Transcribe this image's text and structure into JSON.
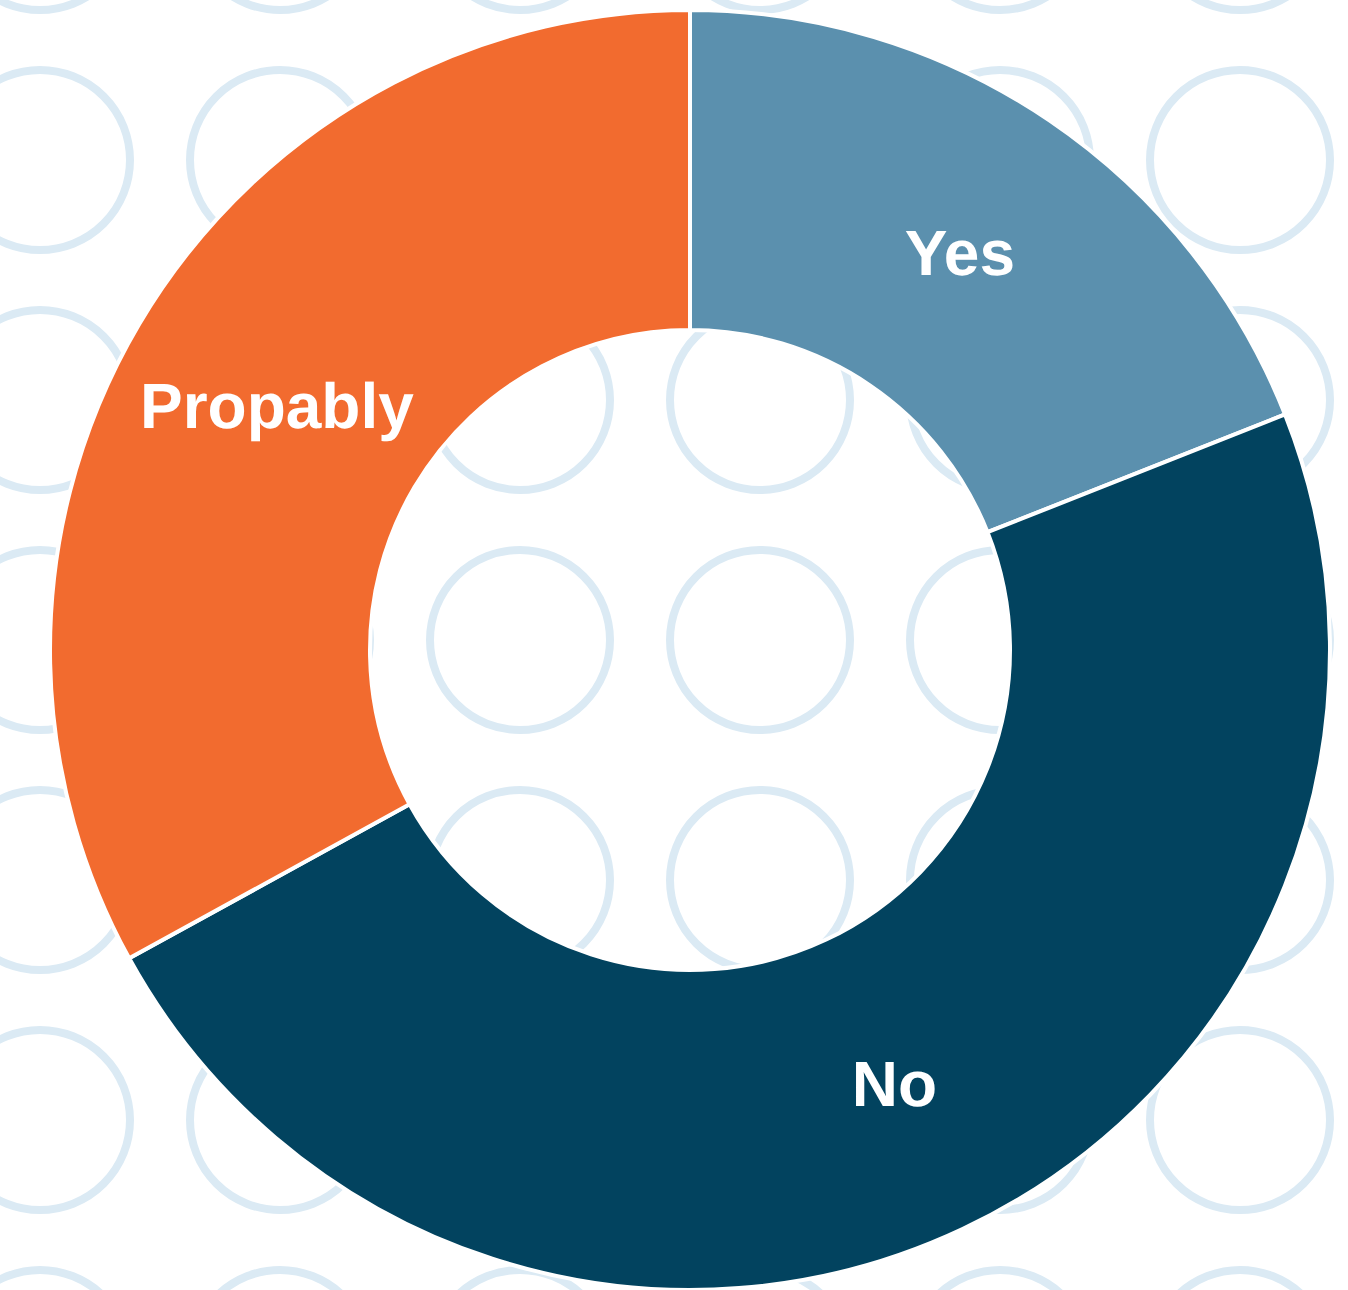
{
  "chart_data": {
    "type": "donut",
    "categories": [
      "Yes",
      "No",
      "Propably"
    ],
    "values": [
      19,
      48,
      33
    ],
    "colors": [
      "#5b90ae",
      "#02435f",
      "#f26b2f"
    ]
  }
}
